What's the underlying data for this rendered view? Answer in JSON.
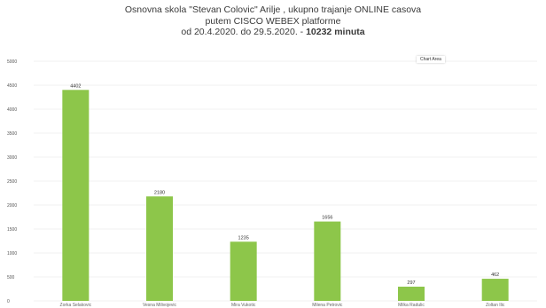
{
  "title": {
    "line1": "Osnovna skola \"Stevan Colovic\" Arilje , ukupno trajanje ONLINE casova",
    "line2": "putem CISCO WEBEX platforme",
    "line3_prefix": "od 20.4.2020. do 29.5.2020. - ",
    "line3_bold": "10232 minuta"
  },
  "chart_area_label": "Chart Area",
  "colors": {
    "bar": "#8dc64a",
    "grid": "#e6e6e6"
  },
  "chart_data": {
    "type": "bar",
    "title": "Osnovna skola \"Stevan Colovic\" Arilje , ukupno trajanje ONLINE casova putem CISCO WEBEX platforme od 20.4.2020. do 29.5.2020. - 10232 minuta",
    "categories": [
      "Zorka Selakovic",
      "Vesna Milivojevic",
      "Mira Vukotic",
      "Milena Petrovic",
      "Milka Radulic",
      "Zoltan Ilic"
    ],
    "values": [
      4402,
      2180,
      1235,
      1656,
      297,
      462
    ],
    "yticks": [
      0,
      500,
      1000,
      1500,
      2000,
      2500,
      3000,
      3500,
      4000,
      4500,
      5000
    ],
    "ylim": [
      0,
      5000
    ],
    "grid": true,
    "legend": "none"
  }
}
